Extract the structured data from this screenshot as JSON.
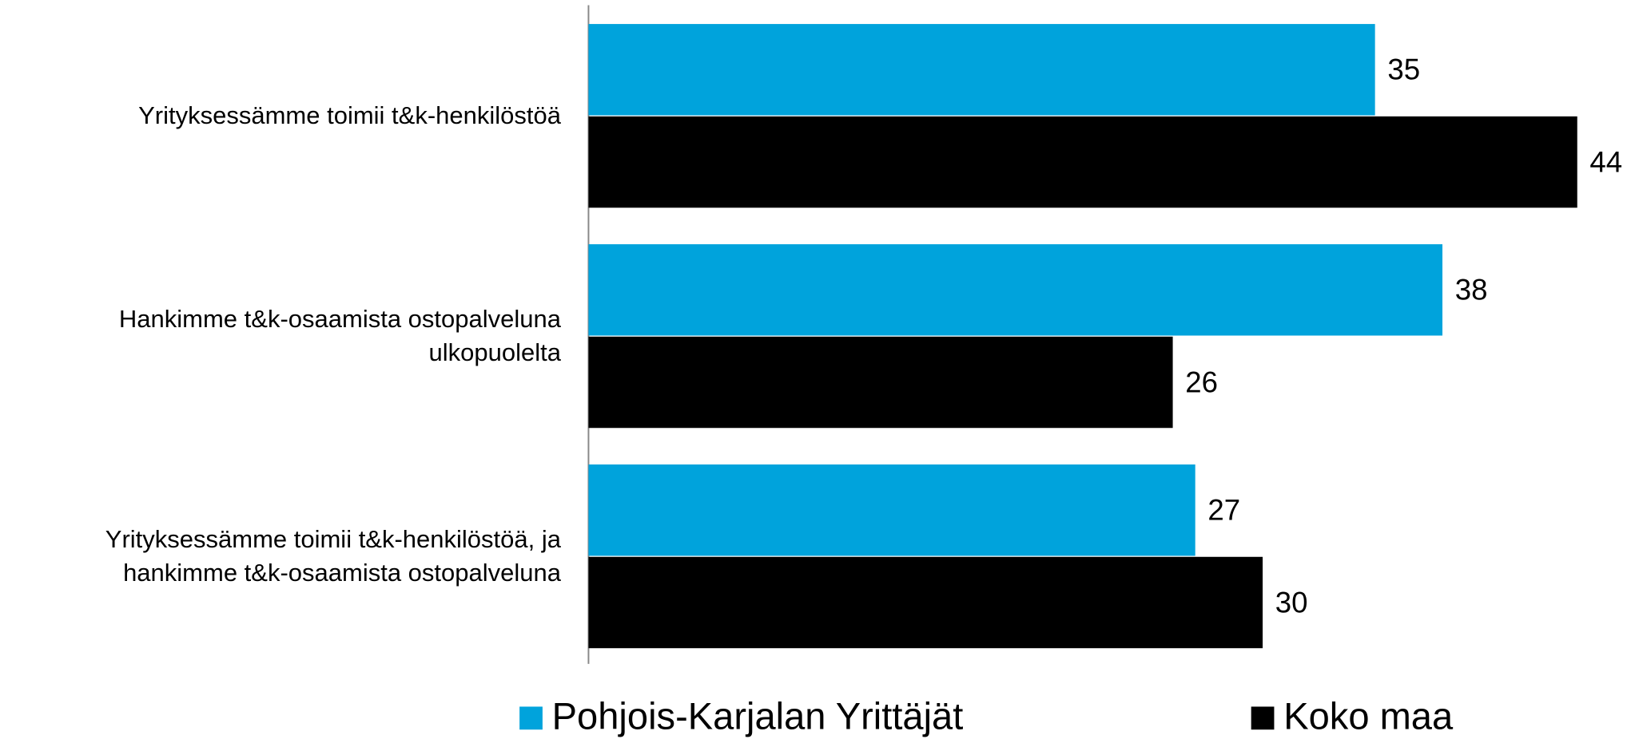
{
  "chart_data": {
    "type": "bar",
    "orientation": "horizontal",
    "categories": [
      "Yrityksessämme toimii t&k-henkilöstöä",
      "Hankimme t&k-osaamista ostopalveluna ulkopuolelta",
      "Yrityksessämme toimii t&k-henkilöstöä, ja hankimme t&k-osaamista ostopalveluna"
    ],
    "series": [
      {
        "name": "Pohjois-Karjalan Yrittäjät",
        "color": "#00a3dc",
        "values": [
          35,
          38,
          27
        ]
      },
      {
        "name": "Koko maa",
        "color": "#000000",
        "values": [
          44,
          26,
          30
        ]
      }
    ],
    "legend": "bottom"
  }
}
